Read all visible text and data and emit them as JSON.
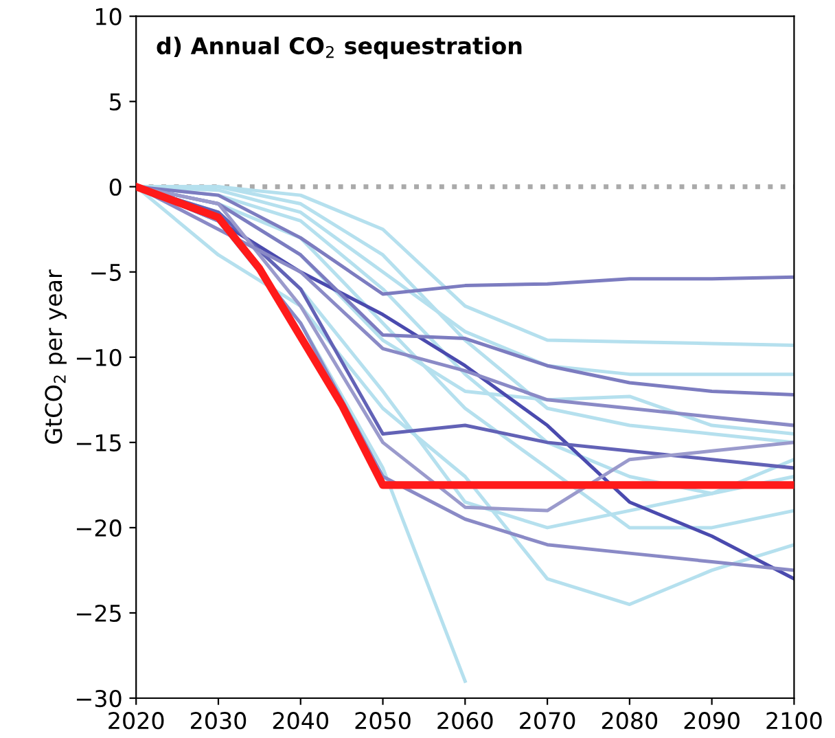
{
  "chart_data": {
    "type": "line",
    "title": "d) Annual CO$_{2}$ sequestration",
    "ylabel": "GtCO$_{2}$ per year",
    "x": [
      2020,
      2030,
      2040,
      2050,
      2060,
      2070,
      2080,
      2090,
      2100
    ],
    "xlim": [
      2020,
      2100
    ],
    "xticks": [
      2020,
      2030,
      2040,
      2050,
      2060,
      2070,
      2080,
      2090,
      2100
    ],
    "ylim": [
      -30,
      10
    ],
    "yticks": [
      {
        "value": -30,
        "label": "−30"
      },
      {
        "value": -25,
        "label": "−25"
      },
      {
        "value": -20,
        "label": "−20"
      },
      {
        "value": -15,
        "label": "−15"
      },
      {
        "value": -10,
        "label": "−10"
      },
      {
        "value": -5,
        "label": "−5"
      },
      0,
      5,
      10
    ],
    "grid": false,
    "legend": false,
    "marker": "none",
    "line_style": "solid",
    "ref_lines": [
      {
        "axis": "y",
        "value": 0,
        "color": "#aaaaaa",
        "line_style": "dotted"
      }
    ],
    "series": [
      {
        "color": "#b5e0ee",
        "values": [
          0,
          0,
          -0.5,
          -2.5,
          -7,
          -9,
          -9.1,
          -9.2,
          -9.3
        ]
      },
      {
        "color": "#b5e0ee",
        "values": [
          0,
          -0.2,
          -1.5,
          -5,
          -8.5,
          -10.5,
          -11,
          -11,
          -11
        ]
      },
      {
        "color": "#b5e0ee",
        "values": [
          0,
          -1,
          -4,
          -9,
          -12,
          -12.5,
          -12.3,
          -14,
          -14.5
        ]
      },
      {
        "color": "#b5e0ee",
        "values": [
          0,
          -1.5,
          -6,
          -12,
          -18.5,
          -20,
          -19,
          -18,
          -17
        ]
      },
      {
        "color": "#b5e0ee",
        "values": [
          0,
          -2,
          -8,
          -16.5,
          -29,
          null,
          null,
          null,
          null
        ]
      },
      {
        "color": "#b5e0ee",
        "values": [
          0,
          -4,
          -7,
          -13,
          -17,
          -23,
          -24.5,
          -22.5,
          -21
        ]
      },
      {
        "color": "#b5e0ee",
        "values": [
          0,
          -0.5,
          -2,
          -6,
          -11,
          -15,
          -17,
          -18,
          -16
        ]
      },
      {
        "color": "#b5e0ee",
        "values": [
          0,
          -1,
          -3,
          -8,
          -13,
          -16.5,
          -20,
          -20,
          -19
        ]
      },
      {
        "color": "#b5e0ee",
        "values": [
          0,
          0,
          -1,
          -4,
          -9,
          -13,
          -14,
          -14.5,
          -15
        ]
      },
      {
        "color": "#7c7cc0",
        "values": [
          0,
          -0.5,
          -3,
          -6.3,
          -5.8,
          -5.7,
          -5.4,
          -5.4,
          -5.3
        ]
      },
      {
        "color": "#4a4aae",
        "values": [
          0,
          -2,
          -5,
          -7.5,
          -10.5,
          -14,
          -18.5,
          -20.5,
          -23
        ]
      },
      {
        "color": "#7c7cc0",
        "values": [
          0,
          -1,
          -4,
          -8.7,
          -8.9,
          -10.5,
          -11.5,
          -12,
          -12.2
        ]
      },
      {
        "color": "#6262b6",
        "values": [
          0,
          -1.5,
          -6,
          -14.5,
          -14,
          -15,
          -15.5,
          -16,
          -16.5
        ]
      },
      {
        "color": "#9a9acc",
        "values": [
          0,
          -1,
          -7,
          -15,
          -18.8,
          -19,
          -16,
          -15.5,
          -15
        ]
      },
      {
        "color": "#8a8ac6",
        "values": [
          0,
          -2,
          -8,
          -17,
          -19.5,
          -21,
          -21.5,
          -22,
          -22.5
        ]
      },
      {
        "color": "#8a8ac6",
        "values": [
          0,
          -2.5,
          -5,
          -9.5,
          -10.8,
          -12.5,
          -13,
          -13.5,
          -14
        ]
      },
      {
        "color": "#ff1a1a",
        "x": [
          2020,
          2030,
          2035,
          2040,
          2045,
          2050,
          2100
        ],
        "values": [
          0,
          -1.8,
          -4.8,
          -8.8,
          -12.8,
          -17.5,
          -17.5
        ]
      }
    ]
  }
}
